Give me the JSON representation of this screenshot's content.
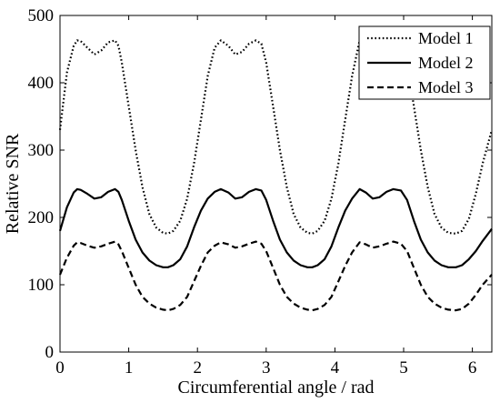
{
  "chart_data": {
    "type": "line",
    "title": "",
    "xlabel": "Circumferential angle / rad",
    "ylabel": "Relative SNR",
    "xlim": [
      0,
      6.283
    ],
    "ylim": [
      0,
      500
    ],
    "xticks": [
      0,
      1,
      2,
      3,
      4,
      5,
      6
    ],
    "yticks": [
      0,
      100,
      200,
      300,
      400,
      500
    ],
    "grid": false,
    "legend_position": "top-right",
    "series": [
      {
        "name": "Model 1",
        "style": "dotted",
        "color": "#000000",
        "x": [
          0,
          0.1,
          0.2,
          0.25,
          0.3,
          0.4,
          0.5,
          0.6,
          0.7,
          0.8,
          0.85,
          0.9,
          1.0,
          1.1,
          1.2,
          1.3,
          1.4,
          1.5,
          1.57,
          1.65,
          1.75,
          1.85,
          1.95,
          2.05,
          2.15,
          2.25,
          2.34,
          2.45,
          2.55,
          2.65,
          2.75,
          2.85,
          2.93,
          3.0,
          3.1,
          3.2,
          3.3,
          3.4,
          3.5,
          3.6,
          3.67,
          3.75,
          3.85,
          3.95,
          4.05,
          4.15,
          4.25,
          4.36,
          4.45,
          4.55,
          4.65,
          4.75,
          4.85,
          4.96,
          5.05,
          5.15,
          5.25,
          5.35,
          5.45,
          5.55,
          5.65,
          5.76,
          5.85,
          5.95,
          6.05,
          6.15,
          6.283
        ],
        "y": [
          330,
          415,
          455,
          463,
          462,
          452,
          442,
          448,
          460,
          463,
          455,
          430,
          365,
          300,
          245,
          205,
          185,
          177,
          176,
          180,
          195,
          228,
          280,
          345,
          410,
          452,
          463,
          455,
          442,
          446,
          458,
          463,
          458,
          430,
          365,
          300,
          245,
          205,
          185,
          177,
          176,
          180,
          195,
          228,
          280,
          345,
          410,
          463,
          455,
          442,
          446,
          458,
          463,
          458,
          430,
          365,
          300,
          245,
          205,
          185,
          177,
          176,
          180,
          198,
          235,
          280,
          330
        ]
      },
      {
        "name": "Model 2",
        "style": "solid",
        "color": "#000000",
        "x": [
          0,
          0.1,
          0.2,
          0.25,
          0.3,
          0.4,
          0.5,
          0.6,
          0.7,
          0.8,
          0.85,
          0.9,
          1.0,
          1.1,
          1.2,
          1.3,
          1.4,
          1.5,
          1.57,
          1.65,
          1.75,
          1.85,
          1.95,
          2.05,
          2.15,
          2.25,
          2.34,
          2.45,
          2.55,
          2.65,
          2.75,
          2.85,
          2.93,
          3.0,
          3.1,
          3.2,
          3.3,
          3.4,
          3.5,
          3.6,
          3.67,
          3.75,
          3.85,
          3.95,
          4.05,
          4.15,
          4.25,
          4.36,
          4.45,
          4.55,
          4.65,
          4.75,
          4.85,
          4.96,
          5.05,
          5.15,
          5.25,
          5.35,
          5.45,
          5.55,
          5.65,
          5.76,
          5.85,
          5.95,
          6.05,
          6.15,
          6.283
        ],
        "y": [
          180,
          215,
          237,
          242,
          241,
          235,
          228,
          230,
          238,
          242,
          238,
          226,
          195,
          167,
          148,
          136,
          129,
          126,
          126,
          129,
          138,
          157,
          185,
          210,
          228,
          238,
          242,
          237,
          228,
          230,
          238,
          242,
          240,
          226,
          195,
          167,
          148,
          136,
          129,
          126,
          126,
          129,
          138,
          157,
          185,
          210,
          228,
          242,
          237,
          228,
          230,
          238,
          242,
          240,
          226,
          195,
          167,
          148,
          136,
          129,
          126,
          126,
          129,
          138,
          150,
          165,
          183
        ]
      },
      {
        "name": "Model 3",
        "style": "dashed",
        "color": "#000000",
        "x": [
          0,
          0.1,
          0.2,
          0.25,
          0.3,
          0.4,
          0.5,
          0.6,
          0.7,
          0.8,
          0.85,
          0.9,
          1.0,
          1.1,
          1.2,
          1.3,
          1.4,
          1.5,
          1.57,
          1.65,
          1.75,
          1.85,
          1.95,
          2.05,
          2.15,
          2.25,
          2.34,
          2.45,
          2.55,
          2.65,
          2.75,
          2.85,
          2.93,
          3.0,
          3.1,
          3.2,
          3.3,
          3.4,
          3.5,
          3.6,
          3.67,
          3.75,
          3.85,
          3.95,
          4.05,
          4.15,
          4.25,
          4.36,
          4.45,
          4.55,
          4.65,
          4.75,
          4.85,
          4.96,
          5.05,
          5.15,
          5.25,
          5.35,
          5.45,
          5.55,
          5.65,
          5.76,
          5.85,
          5.95,
          6.05,
          6.15,
          6.283
        ],
        "y": [
          115,
          140,
          158,
          163,
          162,
          158,
          155,
          157,
          161,
          164,
          160,
          150,
          125,
          100,
          82,
          72,
          66,
          63,
          62,
          64,
          70,
          82,
          105,
          128,
          148,
          158,
          163,
          160,
          155,
          157,
          161,
          164,
          161,
          150,
          125,
          100,
          82,
          72,
          66,
          63,
          62,
          64,
          70,
          82,
          105,
          128,
          148,
          163,
          160,
          155,
          157,
          161,
          164,
          161,
          150,
          125,
          100,
          82,
          72,
          66,
          63,
          62,
          64,
          72,
          85,
          100,
          115
        ]
      }
    ]
  }
}
